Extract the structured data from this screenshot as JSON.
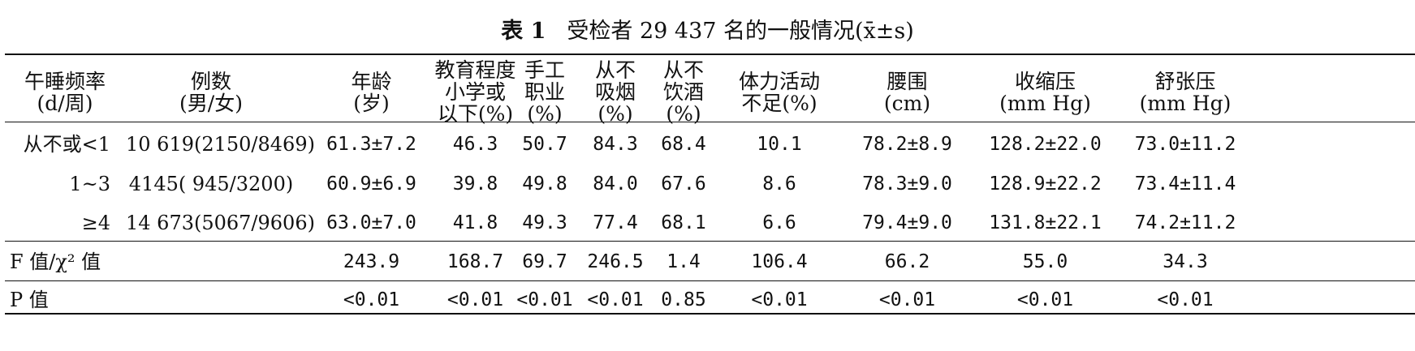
{
  "caption": {
    "label": "表 1",
    "text": "受检者 29 437 名的一般情况(x̄±s)"
  },
  "headers": {
    "nap_freq": [
      "午睡频率",
      "(d/周)"
    ],
    "count": [
      "例数",
      "(男/女)"
    ],
    "age": [
      "年龄",
      "(岁)"
    ],
    "edu": [
      "教育程度",
      "小学或",
      "以下(%)"
    ],
    "manual": [
      "手工",
      "职业",
      "(%)"
    ],
    "nosmoke": [
      "从不",
      "吸烟",
      "(%)"
    ],
    "nodrink": [
      "从不",
      "饮酒",
      "(%)"
    ],
    "activity": [
      "体力活动",
      "不足(%)"
    ],
    "waist": [
      "腰围",
      "(cm)"
    ],
    "sbp": [
      "收缩压",
      "(mm Hg)"
    ],
    "dbp": [
      "舒张压",
      "(mm Hg)"
    ]
  },
  "rows": [
    {
      "label": "从不或<1",
      "count": "10 619(2150/8469)",
      "age": "61.3±7.2",
      "edu": "46.3",
      "manual": "50.7",
      "nosmoke": "84.3",
      "nodrink": "68.4",
      "activity": "10.1",
      "waist": "78.2±8.9",
      "sbp": "128.2±22.0",
      "dbp": "73.0±11.2"
    },
    {
      "label": "1~3",
      "count": "4145( 945/3200)",
      "age": "60.9±6.9",
      "edu": "39.8",
      "manual": "49.8",
      "nosmoke": "84.0",
      "nodrink": "67.6",
      "activity": "8.6",
      "waist": "78.3±9.0",
      "sbp": "128.9±22.2",
      "dbp": "73.4±11.4"
    },
    {
      "label": "≥4",
      "count": "14 673(5067/9606)",
      "age": "63.0±7.0",
      "edu": "41.8",
      "manual": "49.3",
      "nosmoke": "77.4",
      "nodrink": "68.1",
      "activity": "6.6",
      "waist": "79.4±9.0",
      "sbp": "131.8±22.1",
      "dbp": "74.2±11.2"
    }
  ],
  "stats": [
    {
      "label": "F 值/χ² 值",
      "age": "243.9",
      "edu": "168.7",
      "manual": "69.7",
      "nosmoke": "246.5",
      "nodrink": "1.4",
      "activity": "106.4",
      "waist": "66.2",
      "sbp": "55.0",
      "dbp": "34.3"
    },
    {
      "label": "P 值",
      "age": "<0.01",
      "edu": "<0.01",
      "manual": "<0.01",
      "nosmoke": "<0.01",
      "nodrink": "0.85",
      "activity": "<0.01",
      "waist": "<0.01",
      "sbp": "<0.01",
      "dbp": "<0.01"
    }
  ]
}
